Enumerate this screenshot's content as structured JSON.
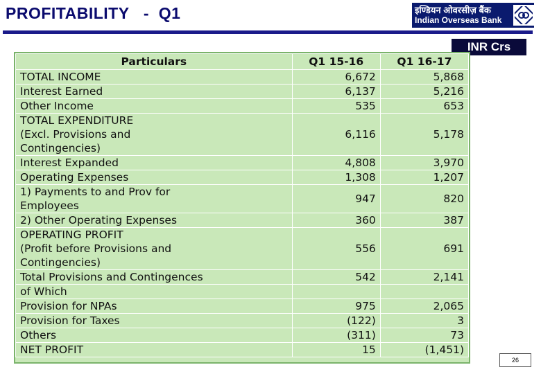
{
  "header": {
    "title": "PROFITABILITY   -  Q1",
    "logo_hindi": "इण्डियन ओवरसीज़ बैंक",
    "logo_english": "Indian Overseas Bank",
    "unit": "INR Crs"
  },
  "table": {
    "columns": [
      "Particulars",
      "Q1 15-16",
      "Q1 16-17"
    ],
    "rows": [
      {
        "label": "TOTAL INCOME",
        "q1_15_16": "6,672",
        "q1_16_17": "5,868"
      },
      {
        "label": "Interest Earned",
        "q1_15_16": "6,137",
        "q1_16_17": "5,216"
      },
      {
        "label": "Other Income",
        "q1_15_16": "535",
        "q1_16_17": "653"
      },
      {
        "label": "TOTAL EXPENDITURE\n(Excl. Provisions and\nContingencies)",
        "q1_15_16": "6,116",
        "q1_16_17": "5,178"
      },
      {
        "label": "Interest Expanded",
        "q1_15_16": "4,808",
        "q1_16_17": "3,970"
      },
      {
        "label": "Operating Expenses",
        "q1_15_16": "1,308",
        "q1_16_17": "1,207"
      },
      {
        "label": "1) Payments to and Prov for\nEmployees",
        "q1_15_16": "947",
        "q1_16_17": "820"
      },
      {
        "label": "2) Other Operating Expenses",
        "q1_15_16": "360",
        "q1_16_17": "387"
      },
      {
        "label": "OPERATING PROFIT\n(Profit before Provisions and\nContingencies)",
        "q1_15_16": "556",
        "q1_16_17": "691"
      },
      {
        "label": "Total Provisions and Contingences",
        "q1_15_16": "542",
        "q1_16_17": "2,141"
      },
      {
        "label": "of Which",
        "q1_15_16": "",
        "q1_16_17": ""
      },
      {
        "label": "Provision for NPAs",
        "q1_15_16": "975",
        "q1_16_17": "2,065"
      },
      {
        "label": "Provision for Taxes",
        "q1_15_16": "(122)",
        "q1_16_17": "3"
      },
      {
        "label": "Others",
        "q1_15_16": "(311)",
        "q1_16_17": "73"
      },
      {
        "label": "NET PROFIT",
        "q1_15_16": "15",
        "q1_16_17": "(1,451)"
      }
    ]
  },
  "footer": {
    "page_number": "26"
  },
  "colors": {
    "title": "#0b0b6e",
    "table_bg": "#c9e8b9",
    "logo_bg": "#0a1a6e"
  }
}
